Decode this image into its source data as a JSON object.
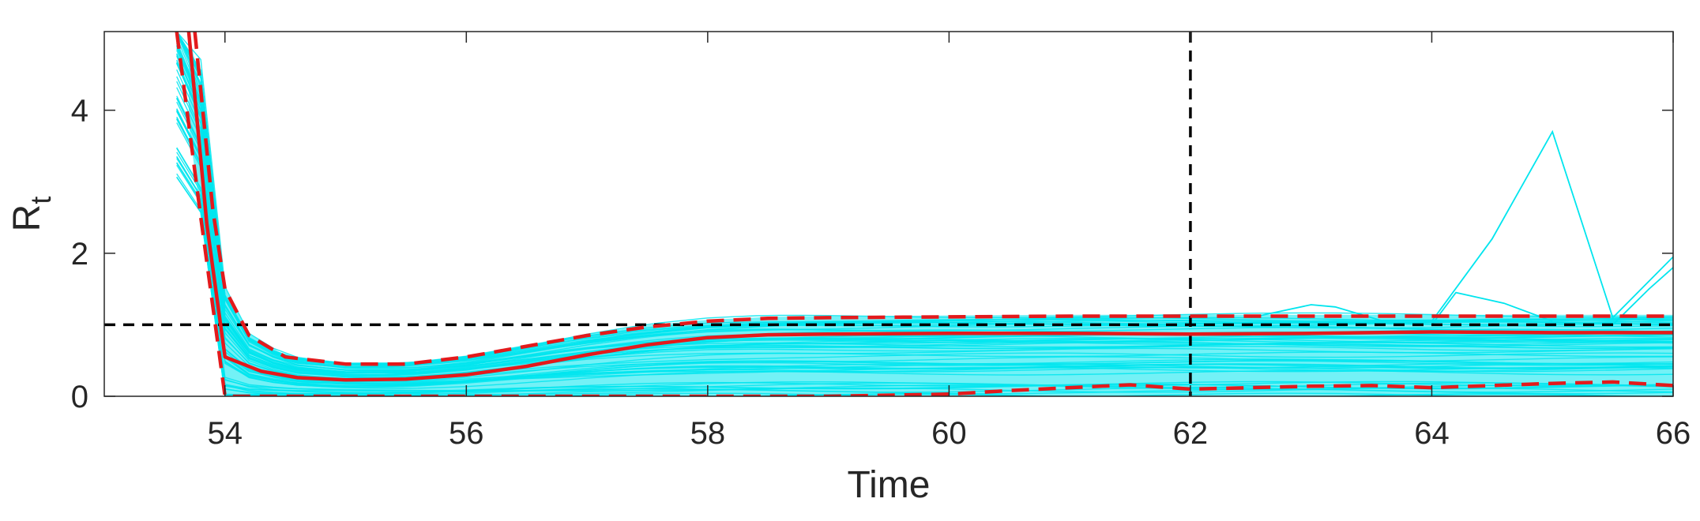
{
  "chart_data": {
    "type": "line",
    "xlabel": "Time",
    "ylabel_base": "R",
    "ylabel_sub": "t",
    "xlim": [
      53,
      66
    ],
    "ylim": [
      0,
      5.1
    ],
    "xticks": [
      54,
      56,
      58,
      60,
      62,
      64,
      66
    ],
    "yticks": [
      0,
      2,
      4
    ],
    "grid": false,
    "reference_lines": [
      {
        "orientation": "horizontal",
        "value": 1,
        "style": "dashed",
        "color": "#000000"
      },
      {
        "orientation": "vertical",
        "value": 62,
        "style": "dashed",
        "color": "#000000"
      }
    ],
    "series": [
      {
        "role": "median",
        "style": "solid",
        "color": "#e31a1c",
        "x": [
          53.7,
          53.85,
          54.0,
          54.3,
          54.6,
          55.0,
          55.5,
          56.0,
          56.5,
          57.0,
          57.5,
          58.0,
          58.5,
          59.0,
          60.0,
          61.0,
          62.0,
          63.0,
          64.0,
          65.0,
          66.0
        ],
        "y": [
          5.1,
          2.4,
          0.55,
          0.35,
          0.26,
          0.23,
          0.24,
          0.3,
          0.42,
          0.58,
          0.72,
          0.82,
          0.86,
          0.87,
          0.88,
          0.88,
          0.87,
          0.88,
          0.9,
          0.89,
          0.89
        ]
      },
      {
        "role": "upper_bound",
        "style": "dashed",
        "color": "#e31a1c",
        "x": [
          53.75,
          53.9,
          54.0,
          54.2,
          54.5,
          55.0,
          55.5,
          56.0,
          56.5,
          57.0,
          57.5,
          58.0,
          58.5,
          59.0,
          60.0,
          61.0,
          62.0,
          63.0,
          64.0,
          65.0,
          66.0
        ],
        "y": [
          5.1,
          2.6,
          1.5,
          0.85,
          0.55,
          0.45,
          0.45,
          0.55,
          0.7,
          0.85,
          0.97,
          1.05,
          1.09,
          1.1,
          1.11,
          1.12,
          1.12,
          1.12,
          1.12,
          1.12,
          1.12
        ]
      },
      {
        "role": "lower_bound",
        "style": "dashed",
        "color": "#e31a1c",
        "x": [
          53.6,
          53.8,
          54.0,
          55.0,
          56.0,
          57.0,
          58.0,
          59.0,
          60.0,
          60.5,
          61.0,
          61.5,
          62.0,
          62.5,
          63.0,
          63.5,
          64.0,
          64.5,
          65.0,
          65.5,
          66.0
        ],
        "y": [
          5.1,
          2.5,
          0.0,
          0.0,
          0.0,
          0.0,
          0.0,
          0.0,
          0.03,
          0.08,
          0.12,
          0.16,
          0.1,
          0.12,
          0.14,
          0.15,
          0.12,
          0.15,
          0.18,
          0.2,
          0.15
        ]
      }
    ],
    "ensemble": {
      "color": "#00e5ee",
      "description_count": 60,
      "outliers": [
        {
          "x": [
            64.0,
            64.5,
            65.0,
            65.5,
            66.0
          ],
          "y": [
            1.05,
            2.2,
            3.7,
            1.1,
            1.95
          ]
        },
        {
          "x": [
            64.0,
            64.2,
            64.6,
            65.0
          ],
          "y": [
            1.0,
            1.45,
            1.3,
            1.05
          ]
        },
        {
          "x": [
            62.5,
            63.0,
            63.2,
            63.6
          ],
          "y": [
            1.1,
            1.28,
            1.25,
            1.05
          ]
        },
        {
          "x": [
            65.5,
            65.8,
            66.0
          ],
          "y": [
            1.0,
            1.5,
            1.8
          ]
        }
      ]
    }
  }
}
